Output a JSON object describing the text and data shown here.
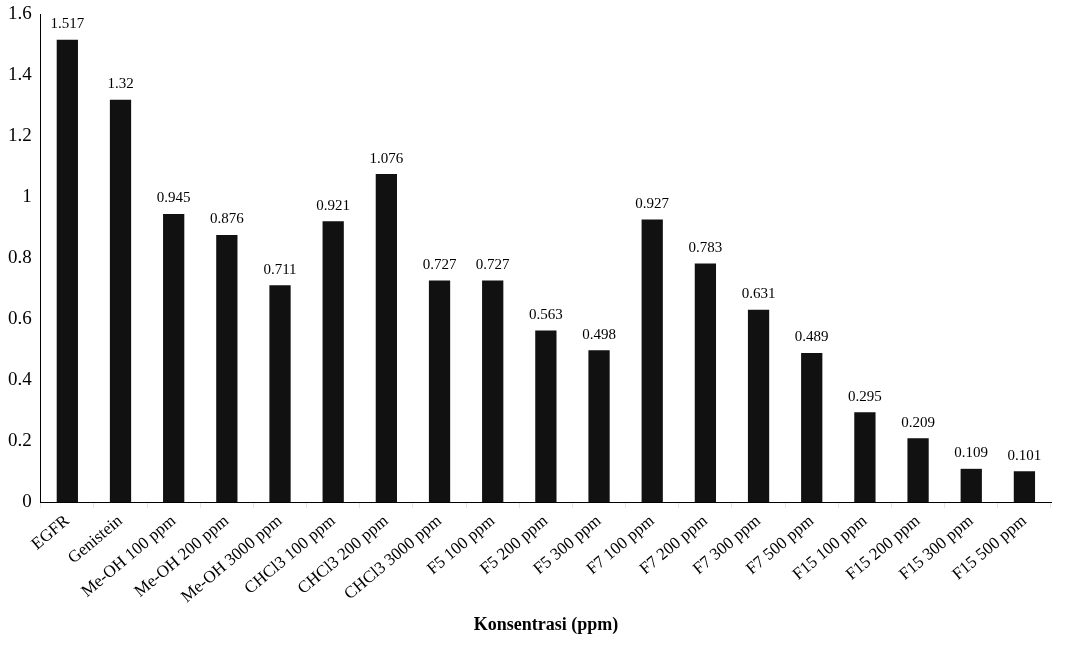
{
  "chart_data": {
    "type": "bar",
    "xlabel": "Konsentrasi (ppm)",
    "categories": [
      "EGFR",
      "Genistein",
      "Me-OH 100 ppm",
      "Me-OH 200 ppm",
      "Me-OH 3000 ppm",
      "CHCl3 100 ppm",
      "CHCl3 200 ppm",
      "CHCl3 3000 ppm",
      "F5 100 ppm",
      "F5 200 ppm",
      "F5 300 ppm",
      "F7 100 ppm",
      "F7 200 ppm",
      "F7 300 ppm",
      "F7 500 ppm",
      "F15 100 ppm",
      "F15 200 ppm",
      "F15 300 ppm",
      "F15 500 ppm"
    ],
    "values": [
      1.517,
      1.32,
      0.945,
      0.876,
      0.711,
      0.921,
      1.076,
      0.727,
      0.727,
      0.563,
      0.498,
      0.927,
      0.783,
      0.631,
      0.489,
      0.295,
      0.209,
      0.109,
      0.101
    ],
    "color": "#111111",
    "ylim": [
      0,
      1.6
    ],
    "yticks": [
      0,
      0.2,
      0.4,
      0.6,
      0.8,
      1,
      1.2,
      1.4,
      1.6
    ],
    "grid": false,
    "legend": false,
    "data_labels": true
  }
}
